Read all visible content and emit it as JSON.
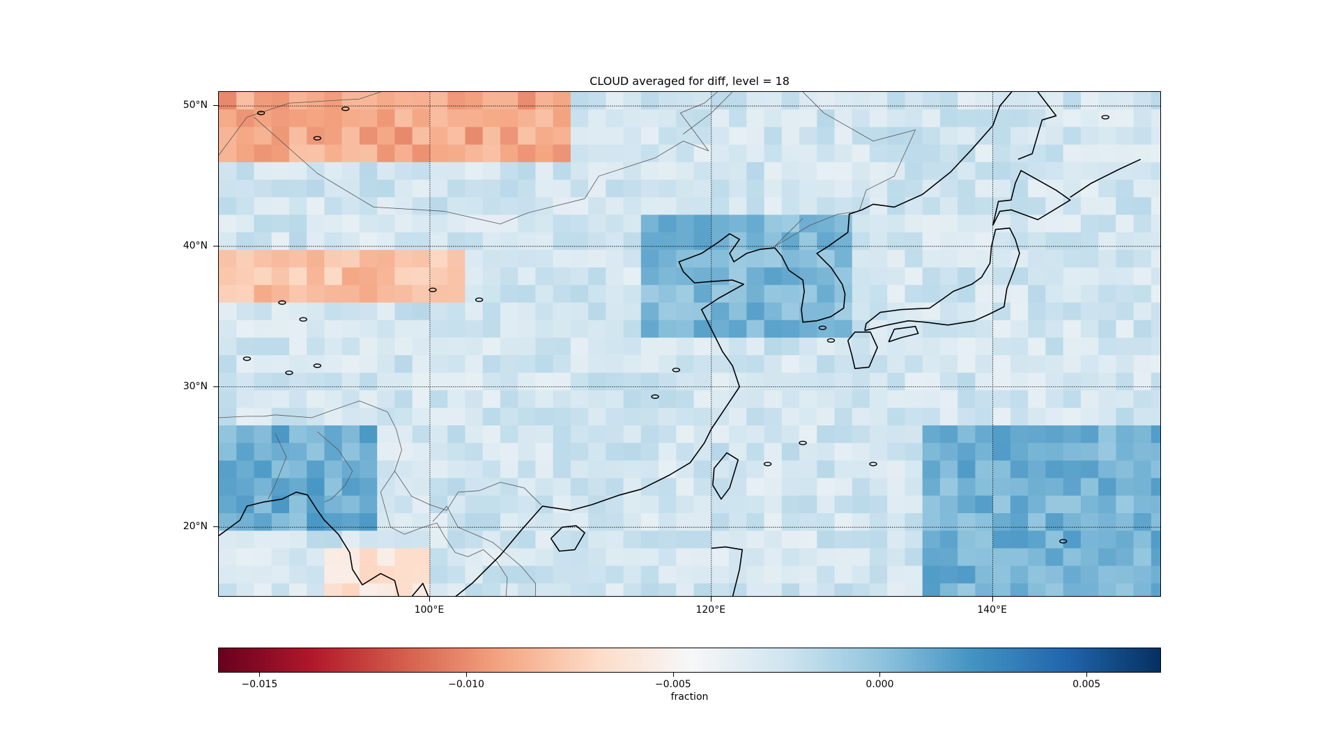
{
  "title": "CLOUD averaged for diff, level = 18",
  "colors": {
    "negative_strong": "#67001f",
    "neutral": "#f7f7f7",
    "positive_strong": "#053061",
    "coastline": "#000000",
    "border": "#555555",
    "gridline": "#000000"
  },
  "map": {
    "projection": "PlateCarree",
    "lon_range": [
      85,
      152
    ],
    "lat_range": [
      15,
      51
    ],
    "x_tick_labels": [
      {
        "lon": 100,
        "label": "100°E"
      },
      {
        "lon": 120,
        "label": "120°E"
      },
      {
        "lon": 140,
        "label": "140°E"
      }
    ],
    "y_tick_labels": [
      {
        "lat": 50,
        "label": "50°N"
      },
      {
        "lat": 40,
        "label": "40°N"
      },
      {
        "lat": 30,
        "label": "30°N"
      },
      {
        "lat": 20,
        "label": "20°N"
      }
    ],
    "gridlines": "dotted",
    "field_description_zones": [
      {
        "region": "Mongolia / northern China",
        "lon": [
          85,
          110
        ],
        "lat": [
          46,
          51
        ],
        "value": -0.009
      },
      {
        "region": "northern Tibetan Plateau band",
        "lon": [
          85,
          103
        ],
        "lat": [
          36.5,
          39.5
        ],
        "value": -0.008
      },
      {
        "region": "Korea / Yellow Sea",
        "lon": [
          115,
          130
        ],
        "lat": [
          34,
          42
        ],
        "value": 0.0005
      },
      {
        "region": "Bay of Bengal / Myanmar",
        "lon": [
          85,
          96
        ],
        "lat": [
          20,
          27
        ],
        "value": 0.001
      },
      {
        "region": "western Pacific south",
        "lon": [
          135,
          152
        ],
        "lat": [
          15,
          27
        ],
        "value": 0.0008
      },
      {
        "region": "southern Tibet fringe",
        "lon": [
          93,
          100
        ],
        "lat": [
          15,
          18
        ],
        "value": -0.006
      }
    ]
  },
  "colorbar": {
    "min": -0.016,
    "max": 0.0068,
    "ticks": [
      {
        "value": -0.015,
        "label": "−0.015"
      },
      {
        "value": -0.01,
        "label": "−0.010"
      },
      {
        "value": -0.005,
        "label": "−0.005"
      },
      {
        "value": 0.0,
        "label": "0.000"
      },
      {
        "value": 0.005,
        "label": "0.005"
      }
    ],
    "label": "fraction",
    "colormap": "RdBu"
  }
}
